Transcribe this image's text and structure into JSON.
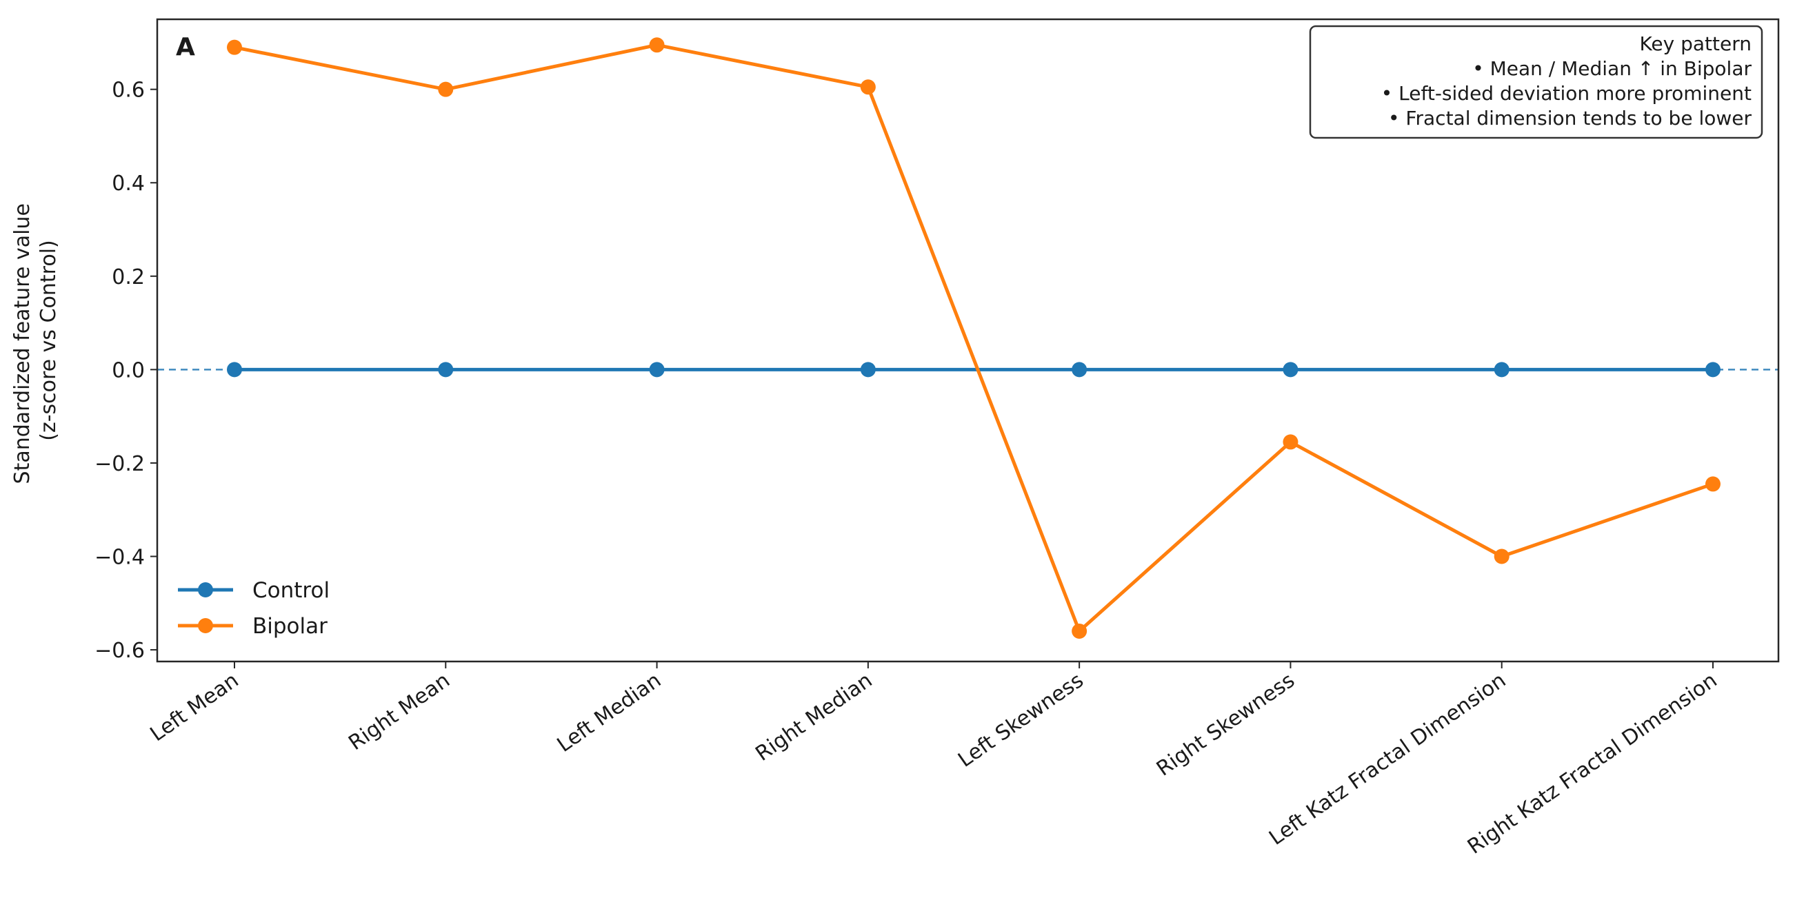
{
  "chart_data": {
    "type": "line",
    "panel_label": "A",
    "ylabel_lines": [
      "Standardized feature value",
      "(z-score vs Control)"
    ],
    "xlabel": "",
    "categories": [
      "Left Mean",
      "Right Mean",
      "Left Median",
      "Right Median",
      "Left Skewness",
      "Right Skewness",
      "Left Katz Fractal Dimension",
      "Right Katz Fractal Dimension"
    ],
    "series": [
      {
        "name": "Control",
        "color": "#1f77b4",
        "values": [
          0,
          0,
          0,
          0,
          0,
          0,
          0,
          0
        ]
      },
      {
        "name": "Bipolar",
        "color": "#ff7f0e",
        "values": [
          0.69,
          0.6,
          0.695,
          0.605,
          -0.56,
          -0.155,
          -0.4,
          -0.245
        ]
      }
    ],
    "ylim": [
      -0.625,
      0.75
    ],
    "yticks": [
      -0.6,
      -0.4,
      -0.2,
      0.0,
      0.2,
      0.4,
      0.6
    ],
    "ytick_labels": [
      "−0.6",
      "−0.4",
      "−0.2",
      "0.0",
      "0.2",
      "0.4",
      "0.6"
    ],
    "reference_line": {
      "y": 0,
      "style": "dashed",
      "color": "#1f77b4"
    },
    "legend": {
      "position": "lower-left"
    },
    "annotation": {
      "position": "top-right",
      "lines": [
        "Key pattern",
        "• Mean / Median ↑ in Bipolar",
        "• Left-sided deviation more prominent",
        "• Fractal dimension tends to be lower"
      ]
    },
    "grid": false
  }
}
